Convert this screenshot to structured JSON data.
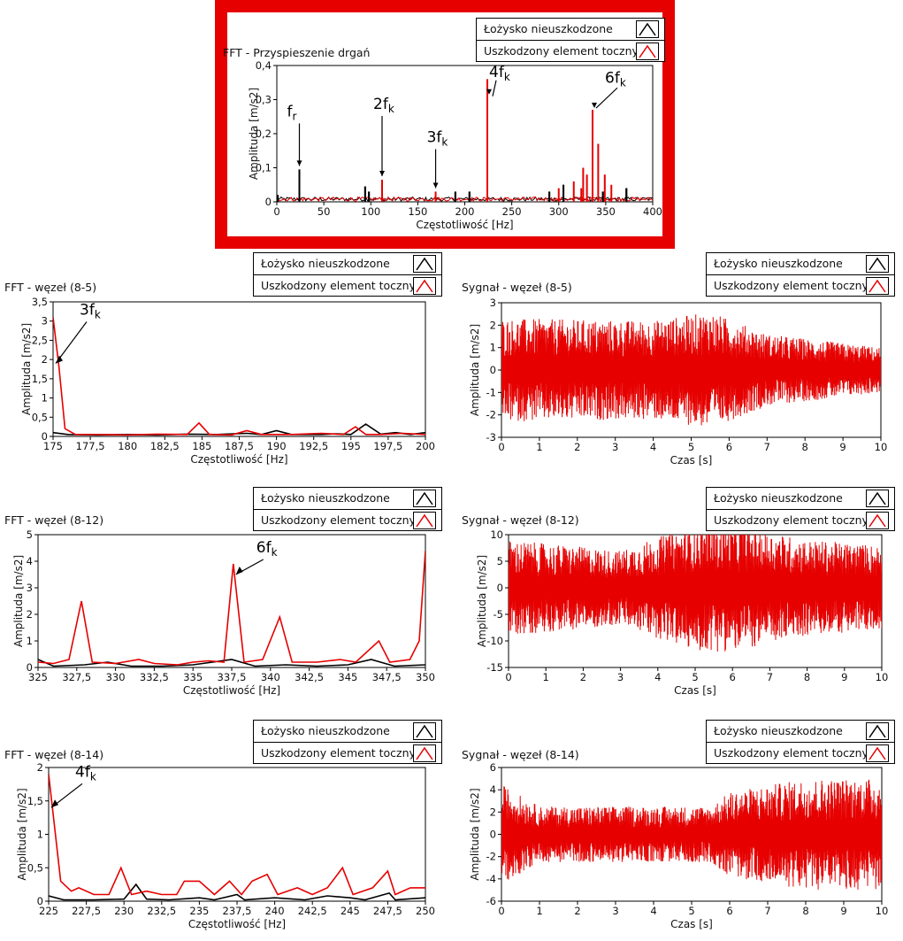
{
  "legend": {
    "series": [
      {
        "name": "Łożysko nieuszkodzone",
        "color": "#000000"
      },
      {
        "name": "Uszkodzony element toczny",
        "color": "#e60000"
      }
    ]
  },
  "chart_data": [
    {
      "id": "top",
      "type": "line",
      "title": "FFT - Przyspieszenie drgań",
      "xlabel": "Częstotliwość [Hz]",
      "ylabel": "Amplituda [m/s2]",
      "xlim": [
        0,
        400
      ],
      "ylim": [
        0,
        0.4
      ],
      "xticks": [
        "0",
        "50",
        "100",
        "150",
        "200",
        "250",
        "300",
        "350",
        "400"
      ],
      "yticks": [
        "0",
        "0,1",
        "0,2",
        "0,3",
        "0,4"
      ],
      "highlight_color": "#e60000",
      "series": [
        {
          "name": "Łożysko nieuszkodzone",
          "color": "#000000",
          "peaks": [
            [
              1,
              0.02
            ],
            [
              24,
              0.095
            ],
            [
              94,
              0.045
            ],
            [
              98,
              0.03
            ],
            [
              190,
              0.03
            ],
            [
              205,
              0.03
            ],
            [
              290,
              0.03
            ],
            [
              305,
              0.05
            ],
            [
              347,
              0.03
            ],
            [
              372,
              0.04
            ]
          ]
        },
        {
          "name": "Uszkodzony element toczny",
          "color": "#e60000",
          "peaks": [
            [
              112,
              0.065
            ],
            [
              169,
              0.03
            ],
            [
              224,
              0.36
            ],
            [
              300,
              0.04
            ],
            [
              316,
              0.06
            ],
            [
              326,
              0.1
            ],
            [
              330,
              0.08
            ],
            [
              336,
              0.27
            ],
            [
              342,
              0.17
            ],
            [
              349,
              0.08
            ],
            [
              356,
              0.05
            ],
            [
              324,
              0.04
            ]
          ]
        }
      ],
      "annotations": [
        {
          "base": "f",
          "sub": "r",
          "x": 24,
          "y": 0.095
        },
        {
          "base": "2f",
          "sub": "k",
          "x": 112,
          "y": 0.065
        },
        {
          "base": "3f",
          "sub": "k",
          "x": 169,
          "y": 0.03
        },
        {
          "base": "4f",
          "sub": "k",
          "x": 224,
          "y": 0.32
        },
        {
          "base": "6f",
          "sub": "k",
          "x": 336,
          "y": 0.27
        }
      ]
    },
    {
      "id": "fft85",
      "type": "line",
      "title": "FFT - węzeł (8-5)",
      "xlabel": "Częstotliwość [Hz]",
      "ylabel": "Amplituda [m/s2]",
      "xlim": [
        175,
        200
      ],
      "ylim": [
        0,
        3.5
      ],
      "xticks": [
        "175",
        "177,5",
        "180",
        "182,5",
        "185",
        "187,5",
        "190",
        "192,5",
        "195",
        "197,5",
        "200"
      ],
      "yticks": [
        "0",
        "0,5",
        "1",
        "1,5",
        "2",
        "2,5",
        "3",
        "3,5"
      ],
      "series": [
        {
          "name": "Łożysko nieuszkodzone",
          "color": "#000000",
          "points": [
            [
              175,
              0.1
            ],
            [
              176,
              0.05
            ],
            [
              178,
              0.04
            ],
            [
              180,
              0.05
            ],
            [
              182,
              0.04
            ],
            [
              184,
              0.06
            ],
            [
              186,
              0.05
            ],
            [
              188,
              0.08
            ],
            [
              189,
              0.05
            ],
            [
              190,
              0.15
            ],
            [
              191,
              0.05
            ],
            [
              193,
              0.05
            ],
            [
              194,
              0.07
            ],
            [
              195,
              0.05
            ],
            [
              196,
              0.32
            ],
            [
              197,
              0.06
            ],
            [
              198,
              0.1
            ],
            [
              199,
              0.05
            ],
            [
              200,
              0.1
            ]
          ]
        },
        {
          "name": "Uszkodzony element toczny",
          "color": "#e60000",
          "points": [
            [
              175,
              3.1
            ],
            [
              175.4,
              1.8
            ],
            [
              175.8,
              0.2
            ],
            [
              176.5,
              0.05
            ],
            [
              178,
              0.05
            ],
            [
              180,
              0.04
            ],
            [
              182,
              0.06
            ],
            [
              184,
              0.05
            ],
            [
              184.8,
              0.35
            ],
            [
              185.5,
              0.05
            ],
            [
              187,
              0.04
            ],
            [
              188,
              0.15
            ],
            [
              189,
              0.05
            ],
            [
              191,
              0.05
            ],
            [
              193,
              0.08
            ],
            [
              194.5,
              0.05
            ],
            [
              195.3,
              0.25
            ],
            [
              196,
              0.05
            ],
            [
              197,
              0.05
            ],
            [
              198.5,
              0.08
            ],
            [
              200,
              0.05
            ]
          ]
        }
      ],
      "annotations": [
        {
          "base": "3f",
          "sub": "k",
          "x": 175,
          "y": 1.9
        }
      ]
    },
    {
      "id": "sig85",
      "type": "line",
      "title": "Sygnał - węzeł (8-5)",
      "xlabel": "Czas [s]",
      "ylabel": "Amplituda [m/s2]",
      "xlim": [
        0,
        10
      ],
      "ylim": [
        -3,
        3
      ],
      "xticks": [
        "0",
        "1",
        "2",
        "3",
        "4",
        "5",
        "6",
        "7",
        "8",
        "9",
        "10"
      ],
      "yticks": [
        "-3",
        "-2",
        "-1",
        "0",
        "1",
        "2",
        "3"
      ],
      "series": [
        {
          "name": "Łożysko nieuszkodzone",
          "color": "#000000",
          "envelope": [
            [
              0,
              0.6
            ],
            [
              10,
              0.5
            ]
          ]
        },
        {
          "name": "Uszkodzony element toczny",
          "color": "#e60000",
          "envelope": [
            [
              0,
              2.3
            ],
            [
              4,
              2.2
            ],
            [
              5.5,
              2.6
            ],
            [
              7,
              1.6
            ],
            [
              10,
              1.0
            ]
          ]
        }
      ],
      "annotations": []
    },
    {
      "id": "fft812",
      "type": "line",
      "title": "FFT - węzeł (8-12)",
      "xlabel": "Częstotliwość [Hz]",
      "ylabel": "Amplituda [m/s2]",
      "xlim": [
        325,
        350
      ],
      "ylim": [
        0,
        5
      ],
      "xticks": [
        "325",
        "327,5",
        "330",
        "332,5",
        "335",
        "337,5",
        "340",
        "342,5",
        "345",
        "347,5",
        "350"
      ],
      "yticks": [
        "0",
        "1",
        "2",
        "3",
        "4",
        "5"
      ],
      "series": [
        {
          "name": "Łożysko nieuszkodzone",
          "color": "#000000",
          "points": [
            [
              325,
              0.3
            ],
            [
              326,
              0.05
            ],
            [
              328,
              0.1
            ],
            [
              329.5,
              0.2
            ],
            [
              331,
              0.05
            ],
            [
              333,
              0.05
            ],
            [
              335,
              0.1
            ],
            [
              337.5,
              0.3
            ],
            [
              339,
              0.05
            ],
            [
              341,
              0.1
            ],
            [
              343,
              0.05
            ],
            [
              345,
              0.1
            ],
            [
              346.5,
              0.3
            ],
            [
              348,
              0.05
            ],
            [
              350,
              0.1
            ]
          ]
        },
        {
          "name": "Uszkodzony element toczny",
          "color": "#e60000",
          "points": [
            [
              325,
              0.2
            ],
            [
              326,
              0.15
            ],
            [
              327,
              0.3
            ],
            [
              327.8,
              2.5
            ],
            [
              328.5,
              0.2
            ],
            [
              330,
              0.15
            ],
            [
              331.5,
              0.3
            ],
            [
              332.5,
              0.15
            ],
            [
              334,
              0.1
            ],
            [
              335,
              0.2
            ],
            [
              336,
              0.25
            ],
            [
              337,
              0.2
            ],
            [
              337.6,
              3.9
            ],
            [
              338.3,
              0.2
            ],
            [
              339.5,
              0.3
            ],
            [
              340.6,
              1.9
            ],
            [
              341.4,
              0.2
            ],
            [
              343,
              0.2
            ],
            [
              344.5,
              0.3
            ],
            [
              345.5,
              0.2
            ],
            [
              347,
              1.0
            ],
            [
              347.7,
              0.2
            ],
            [
              349,
              0.3
            ],
            [
              349.6,
              1.0
            ],
            [
              350,
              4.4
            ]
          ]
        }
      ],
      "annotations": [
        {
          "base": "6f",
          "sub": "k",
          "x": 337.6,
          "y": 3.5
        }
      ]
    },
    {
      "id": "sig812",
      "type": "line",
      "title": "Sygnał - węzeł (8-12)",
      "xlabel": "Czas [s]",
      "ylabel": "Amplituda [m/s2]",
      "xlim": [
        0,
        10
      ],
      "ylim": [
        -15,
        10
      ],
      "xticks": [
        "0",
        "1",
        "2",
        "3",
        "4",
        "5",
        "6",
        "7",
        "8",
        "9",
        "10"
      ],
      "yticks": [
        "-15",
        "-10",
        "-5",
        "0",
        "5",
        "10"
      ],
      "series": [
        {
          "name": "Łożysko nieuszkodzone",
          "color": "#000000",
          "envelope": [
            [
              0,
              0.8
            ],
            [
              10,
              0.8
            ]
          ]
        },
        {
          "name": "Uszkodzony element toczny",
          "color": "#e60000",
          "envelope": [
            [
              0,
              9.0
            ],
            [
              3,
              7.0
            ],
            [
              5,
              12.0
            ],
            [
              6,
              12.0
            ],
            [
              8,
              9.0
            ],
            [
              10,
              8.0
            ]
          ]
        }
      ],
      "annotations": []
    },
    {
      "id": "fft814",
      "type": "line",
      "title": "FFT - węzeł (8-14)",
      "xlabel": "Częstotliwość [Hz]",
      "ylabel": "Amplituda [m/s2]",
      "xlim": [
        225,
        250
      ],
      "ylim": [
        0,
        2
      ],
      "xticks": [
        "225",
        "227,5",
        "230",
        "232,5",
        "235",
        "237,5",
        "240",
        "242,5",
        "245",
        "247,5",
        "250"
      ],
      "yticks": [
        "0",
        "0,5",
        "1",
        "1,5",
        "2"
      ],
      "series": [
        {
          "name": "Łożysko nieuszkodzone",
          "color": "#000000",
          "points": [
            [
              225,
              0.08
            ],
            [
              226,
              0.02
            ],
            [
              228,
              0.02
            ],
            [
              230,
              0.03
            ],
            [
              230.8,
              0.25
            ],
            [
              231.5,
              0.03
            ],
            [
              233,
              0.02
            ],
            [
              235,
              0.05
            ],
            [
              236,
              0.02
            ],
            [
              237.5,
              0.1
            ],
            [
              238,
              0.02
            ],
            [
              240,
              0.05
            ],
            [
              242,
              0.02
            ],
            [
              243.5,
              0.08
            ],
            [
              245,
              0.05
            ],
            [
              246,
              0.02
            ],
            [
              247.6,
              0.12
            ],
            [
              248,
              0.02
            ],
            [
              250,
              0.05
            ]
          ]
        },
        {
          "name": "Uszkodzony element toczny",
          "color": "#e60000",
          "points": [
            [
              225,
              1.9
            ],
            [
              225.3,
              1.3
            ],
            [
              225.8,
              0.3
            ],
            [
              226.5,
              0.15
            ],
            [
              227,
              0.2
            ],
            [
              228,
              0.1
            ],
            [
              229,
              0.1
            ],
            [
              229.8,
              0.5
            ],
            [
              230.5,
              0.1
            ],
            [
              231.5,
              0.15
            ],
            [
              232.5,
              0.1
            ],
            [
              233.5,
              0.1
            ],
            [
              234,
              0.3
            ],
            [
              235,
              0.3
            ],
            [
              236,
              0.1
            ],
            [
              237,
              0.3
            ],
            [
              237.8,
              0.1
            ],
            [
              238.5,
              0.3
            ],
            [
              239.5,
              0.4
            ],
            [
              240.2,
              0.1
            ],
            [
              241.5,
              0.2
            ],
            [
              242.5,
              0.1
            ],
            [
              243.5,
              0.2
            ],
            [
              244.5,
              0.5
            ],
            [
              245.2,
              0.1
            ],
            [
              246.5,
              0.2
            ],
            [
              247.5,
              0.45
            ],
            [
              248,
              0.1
            ],
            [
              249,
              0.2
            ],
            [
              250,
              0.2
            ]
          ]
        }
      ],
      "annotations": [
        {
          "base": "4f",
          "sub": "k",
          "x": 225,
          "y": 1.4
        }
      ]
    },
    {
      "id": "sig814",
      "type": "line",
      "title": "Sygnał - węzeł (8-14)",
      "xlabel": "Czas [s]",
      "ylabel": "Amplituda [m/s2]",
      "xlim": [
        0,
        10
      ],
      "ylim": [
        -6,
        6
      ],
      "xticks": [
        "0",
        "1",
        "2",
        "3",
        "4",
        "5",
        "6",
        "7",
        "8",
        "9",
        "10"
      ],
      "yticks": [
        "-6",
        "-4",
        "-2",
        "0",
        "2",
        "4",
        "6"
      ],
      "series": [
        {
          "name": "Łożysko nieuszkodzone",
          "color": "#000000",
          "envelope": [
            [
              0,
              0.5
            ],
            [
              10,
              0.5
            ]
          ]
        },
        {
          "name": "Uszkodzony element toczny",
          "color": "#e60000",
          "envelope": [
            [
              0,
              4.5
            ],
            [
              1,
              2.5
            ],
            [
              5.5,
              2.5
            ],
            [
              6,
              3.8
            ],
            [
              8,
              5.0
            ],
            [
              10,
              5.0
            ]
          ]
        }
      ],
      "annotations": []
    }
  ]
}
